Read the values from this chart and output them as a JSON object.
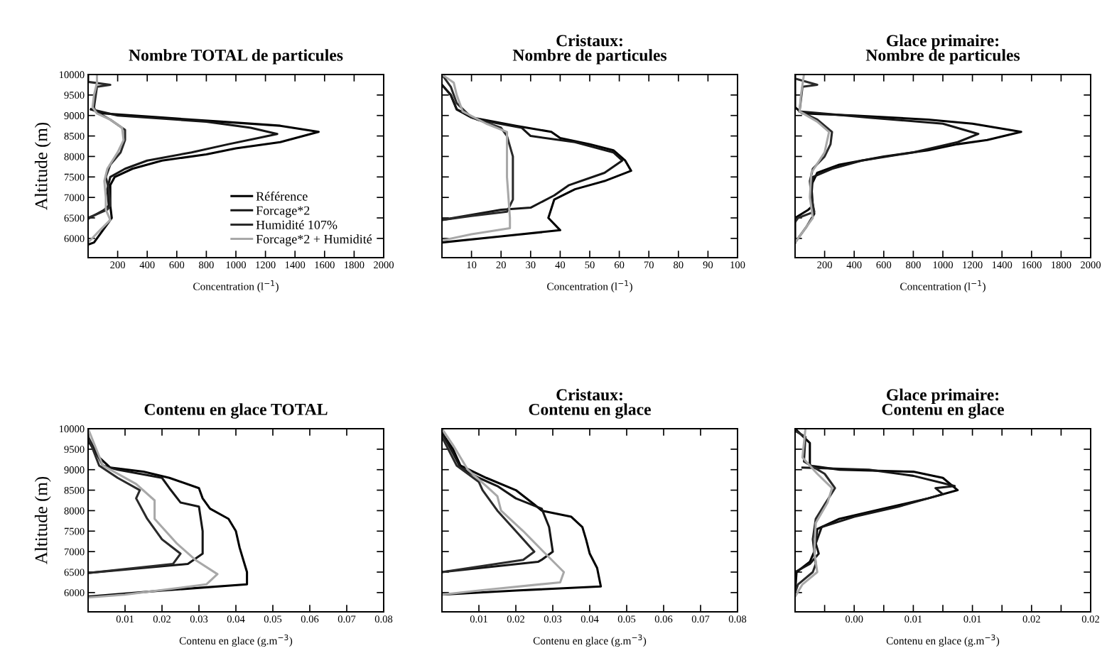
{
  "chart_data": [
    {
      "type": "line",
      "title": "Nombre TOTAL de particules",
      "xlabel": "Concentration (l$^{−1}$)",
      "ylabel": "Altitude (m)",
      "legend": "lower right",
      "xlim": [
        0,
        2000
      ],
      "xticks": [
        200,
        400,
        600,
        800,
        1000,
        1200,
        1400,
        1600,
        1800,
        2000
      ],
      "ylim": [
        5530,
        10000
      ],
      "yticks": [
        6000,
        6500,
        7000,
        7500,
        8000,
        8500,
        9000,
        9500,
        10000
      ],
      "series": [
        {
          "name": "Référence",
          "color": "#000000",
          "x": [
            20,
            100,
            500,
            900,
            1300,
            1560,
            1300,
            1000,
            800,
            500,
            300,
            180,
            150,
            150,
            160,
            100,
            40,
            0
          ],
          "values": [
            9150,
            9050,
            8950,
            8850,
            8750,
            8600,
            8350,
            8200,
            8050,
            7900,
            7700,
            7500,
            7300,
            6800,
            6500,
            6200,
            5900,
            5850
          ]
        },
        {
          "name": "Forcage*2",
          "color": "#161616",
          "x": [
            20,
            200,
            800,
            1100,
            1280,
            1150,
            950,
            700,
            400,
            250,
            150,
            130,
            140,
            110,
            0
          ],
          "values": [
            9150,
            9000,
            8850,
            8700,
            8550,
            8450,
            8300,
            8100,
            7900,
            7700,
            7500,
            7200,
            6800,
            6700,
            6480
          ]
        },
        {
          "name": "Humidité 107%",
          "color": "#2a2a2a",
          "x": [
            0,
            0,
            150,
            60,
            40,
            50,
            150,
            250,
            250,
            220,
            150,
            120,
            140,
            150,
            130,
            0
          ],
          "values": [
            10000,
            9820,
            9750,
            9700,
            9200,
            9100,
            8900,
            8650,
            8400,
            8100,
            7800,
            7500,
            7200,
            6800,
            6700,
            6500
          ]
        },
        {
          "name": "Forcage*2 + Humidité",
          "color": "#a8a8a8",
          "x": [
            60,
            60,
            40,
            30,
            60,
            150,
            230,
            240,
            200,
            130,
            110,
            120,
            120,
            150,
            80,
            0
          ],
          "values": [
            10000,
            9800,
            9500,
            9200,
            9050,
            8900,
            8700,
            8400,
            8100,
            7700,
            7400,
            7000,
            6700,
            6450,
            6200,
            5900
          ]
        }
      ]
    },
    {
      "type": "line",
      "title": "Cristaux:\nNombre de particules",
      "xlabel": "Concentration (l$^{−1}$)",
      "tick_labels": "x",
      "xlim": [
        0,
        100
      ],
      "xticks": [
        10,
        20,
        30,
        40,
        50,
        60,
        70,
        80,
        90,
        100
      ],
      "ylim": [
        5530,
        10000
      ],
      "yticks": [
        6000,
        6500,
        7000,
        7500,
        8000,
        8500,
        9000,
        9500,
        10000
      ],
      "series": [
        {
          "color": "#000000",
          "x": [
            0,
            3,
            5,
            10,
            25,
            37,
            40,
            50,
            58,
            62,
            64,
            55,
            45,
            38,
            36,
            40,
            20,
            0
          ],
          "values": [
            9750,
            9500,
            9150,
            8950,
            8750,
            8600,
            8450,
            8300,
            8150,
            7900,
            7650,
            7400,
            7200,
            6950,
            6500,
            6200,
            6050,
            5900
          ]
        },
        {
          "color": "#161616",
          "x": [
            0,
            3,
            5,
            12,
            27,
            30,
            45,
            58,
            61,
            55,
            43,
            38,
            30,
            20,
            0
          ],
          "values": [
            9750,
            9500,
            9150,
            8900,
            8700,
            8500,
            8350,
            8100,
            7900,
            7600,
            7300,
            7050,
            6750,
            6700,
            6450
          ]
        },
        {
          "color": "#2a2a2a",
          "x": [
            0,
            3,
            5,
            10,
            20,
            22,
            24,
            24,
            24,
            22,
            10,
            0
          ],
          "values": [
            10000,
            9700,
            9300,
            8950,
            8700,
            8500,
            8000,
            7500,
            6950,
            6650,
            6550,
            6450
          ]
        },
        {
          "color": "#a8a8a8",
          "x": [
            0,
            4,
            5,
            7,
            15,
            22,
            22,
            22,
            23,
            23,
            10,
            0
          ],
          "values": [
            10000,
            9800,
            9500,
            9100,
            8800,
            8600,
            8300,
            7500,
            6500,
            6250,
            6100,
            5950
          ]
        }
      ]
    },
    {
      "type": "line",
      "title": "Glace primaire:\nNombre de particules",
      "xlabel": "Concentration (l$^{−1}$)",
      "tick_labels": "x",
      "xlim": [
        0,
        2000
      ],
      "xticks": [
        200,
        400,
        600,
        800,
        1000,
        1200,
        1400,
        1600,
        1800,
        2000
      ],
      "ylim": [
        5530,
        10000
      ],
      "yticks": [
        6000,
        6500,
        7000,
        7500,
        8000,
        8500,
        9000,
        9500,
        10000
      ],
      "series": [
        {
          "color": "#000000",
          "x": [
            0,
            0,
            50,
            400,
            900,
            1200,
            1530,
            1300,
            1100,
            900,
            600,
            300,
            150,
            110,
            120,
            90,
            0,
            0
          ],
          "values": [
            10000,
            9200,
            9050,
            9000,
            8900,
            8800,
            8600,
            8400,
            8300,
            8150,
            8000,
            7800,
            7600,
            7300,
            6800,
            6700,
            6500,
            5900
          ]
        },
        {
          "color": "#161616",
          "x": [
            30,
            500,
            1000,
            1240,
            1100,
            800,
            450,
            250,
            120,
            110,
            130,
            80,
            0
          ],
          "values": [
            9100,
            8950,
            8800,
            8550,
            8350,
            8100,
            7900,
            7700,
            7500,
            7000,
            6600,
            6300,
            5900
          ]
        },
        {
          "color": "#2a2a2a",
          "x": [
            0,
            150,
            50,
            30,
            150,
            250,
            240,
            200,
            120,
            100,
            110,
            130,
            20,
            0
          ],
          "values": [
            9900,
            9750,
            9700,
            9100,
            8900,
            8600,
            8300,
            8000,
            7700,
            7400,
            7000,
            6650,
            6500,
            6400
          ]
        },
        {
          "color": "#a8a8a8",
          "x": [
            60,
            40,
            30,
            150,
            230,
            200,
            110,
            100,
            120,
            60,
            0
          ],
          "values": [
            10000,
            9500,
            9100,
            8850,
            8600,
            8100,
            7600,
            7000,
            6500,
            6200,
            5900
          ]
        }
      ]
    },
    {
      "type": "line",
      "title": "Contenu en glace TOTAL",
      "xlabel": "Contenu en glace (g.m$^{−3}$)",
      "ylabel": "Altitude (m)",
      "xlim": [
        0,
        0.08
      ],
      "xticks": [
        0.01,
        0.02,
        0.03,
        0.04,
        0.05,
        0.06,
        0.07,
        0.08
      ],
      "ylim": [
        5530,
        10000
      ],
      "yticks": [
        6000,
        6500,
        7000,
        7500,
        8000,
        8500,
        9000,
        9500,
        10000
      ],
      "series": [
        {
          "color": "#000000",
          "x": [
            0,
            0,
            0.003,
            0.006,
            0.015,
            0.022,
            0.03,
            0.031,
            0.033,
            0.038,
            0.04,
            0.041,
            0.042,
            0.043,
            0.043,
            0.02,
            0
          ],
          "values": [
            10000,
            9700,
            9300,
            9050,
            8950,
            8800,
            8550,
            8300,
            8050,
            7800,
            7500,
            7100,
            6800,
            6500,
            6200,
            6050,
            5900
          ]
        },
        {
          "color": "#161616",
          "x": [
            0,
            0.004,
            0.008,
            0.02,
            0.022,
            0.025,
            0.03,
            0.031,
            0.031,
            0.027,
            0
          ],
          "values": [
            9800,
            9100,
            9000,
            8800,
            8550,
            8200,
            8100,
            7500,
            6950,
            6700,
            6480
          ]
        },
        {
          "color": "#2a2a2a",
          "x": [
            0,
            0.003,
            0.008,
            0.014,
            0.013,
            0.016,
            0.02,
            0.025,
            0.023,
            0
          ],
          "values": [
            9800,
            9100,
            8800,
            8500,
            8300,
            7800,
            7300,
            6950,
            6700,
            6480
          ]
        },
        {
          "color": "#a8a8a8",
          "x": [
            0,
            0.004,
            0.013,
            0.018,
            0.018,
            0.024,
            0.029,
            0.035,
            0.032,
            0.01,
            0
          ],
          "values": [
            10000,
            9100,
            8650,
            8250,
            7800,
            7200,
            6800,
            6450,
            6200,
            5950,
            5880
          ]
        }
      ]
    },
    {
      "type": "line",
      "title": "Cristaux:\nContenu en glace",
      "xlabel": "Contenu en glace (g.m$^{−3}$)",
      "tick_labels": "x",
      "xlim": [
        0,
        0.08
      ],
      "xticks": [
        0.01,
        0.02,
        0.03,
        0.04,
        0.05,
        0.06,
        0.07,
        0.08
      ],
      "ylim": [
        5530,
        10000
      ],
      "yticks": [
        6000,
        6500,
        7000,
        7500,
        8000,
        8500,
        9000,
        9500,
        10000
      ],
      "series": [
        {
          "color": "#000000",
          "x": [
            0,
            0.003,
            0.005,
            0.012,
            0.02,
            0.025,
            0.027,
            0.035,
            0.038,
            0.039,
            0.04,
            0.042,
            0.043,
            0.02,
            0
          ],
          "values": [
            9900,
            9500,
            9100,
            8800,
            8500,
            8150,
            8000,
            7850,
            7600,
            7300,
            6950,
            6600,
            6150,
            6050,
            5950
          ]
        },
        {
          "color": "#161616",
          "x": [
            0,
            0.003,
            0.005,
            0.01,
            0.015,
            0.02,
            0.027,
            0.029,
            0.03,
            0.027,
            0.026,
            0
          ],
          "values": [
            9900,
            9400,
            9050,
            8800,
            8600,
            8300,
            8050,
            7600,
            7000,
            6800,
            6750,
            6500
          ]
        },
        {
          "color": "#2a2a2a",
          "x": [
            0,
            0.004,
            0.01,
            0.011,
            0.015,
            0.02,
            0.025,
            0.022,
            0
          ],
          "values": [
            9800,
            9100,
            8700,
            8500,
            8000,
            7500,
            7000,
            6800,
            6500
          ]
        },
        {
          "color": "#a8a8a8",
          "x": [
            0,
            0.003,
            0.007,
            0.012,
            0.015,
            0.016,
            0.022,
            0.028,
            0.033,
            0.032,
            0.01,
            0
          ],
          "values": [
            10000,
            9600,
            9000,
            8600,
            8350,
            8000,
            7500,
            6950,
            6500,
            6250,
            6050,
            5950
          ]
        }
      ]
    },
    {
      "type": "line",
      "title": "Glace primaire:\nContenu en glace",
      "xlabel": "Contenu en glace (g.m$^{−3}$)",
      "tick_labels": "x",
      "xlim": [
        0,
        0.02
      ],
      "xticks": [
        {
          "value": 0.002,
          "label": null
        },
        {
          "value": 0.004,
          "label": "0.00"
        },
        {
          "value": 0.006,
          "label": null
        },
        {
          "value": 0.008,
          "label": "0.01"
        },
        {
          "value": 0.01,
          "label": null
        },
        {
          "value": 0.012,
          "label": "0.01"
        },
        {
          "value": 0.014,
          "label": null
        },
        {
          "value": 0.016,
          "label": "0.02"
        },
        {
          "value": 0.018,
          "label": null
        },
        {
          "value": 0.02,
          "label": "0.02"
        }
      ],
      "ylim": [
        5530,
        10000
      ],
      "yticks": [
        6000,
        6500,
        7000,
        7500,
        8000,
        8500,
        9000,
        9500,
        10000
      ],
      "series": [
        {
          "color": "#000000",
          "x": [
            0,
            0.001,
            0.001,
            0.003,
            0.008,
            0.01,
            0.011,
            0.009,
            0.006,
            0.003,
            0.0015,
            0.0013,
            0.001,
            0.0001,
            0
          ],
          "values": [
            10000,
            9650,
            9100,
            9000,
            8950,
            8800,
            8500,
            8300,
            8050,
            7800,
            7550,
            7000,
            6750,
            6500,
            6000
          ]
        },
        {
          "color": "#161616",
          "x": [
            0.0005,
            0.005,
            0.008,
            0.0108,
            0.0095,
            0.01,
            0.007,
            0.004,
            0.0018,
            0.0014,
            0.0016,
            0.001,
            0
          ],
          "values": [
            9050,
            9000,
            8850,
            8600,
            8550,
            8400,
            8100,
            7850,
            7600,
            7200,
            6950,
            6700,
            6500
          ]
        },
        {
          "color": "#2a2a2a",
          "x": [
            0,
            0.0007,
            0.0006,
            0.002,
            0.0027,
            0.002,
            0.0014,
            0.0012,
            0.0014,
            0.0012,
            0.0002,
            0
          ],
          "values": [
            9950,
            9800,
            9200,
            8900,
            8550,
            8150,
            7800,
            7300,
            6700,
            6500,
            6200,
            6000
          ]
        },
        {
          "color": "#a8a8a8",
          "x": [
            0.0007,
            0.0005,
            0.0015,
            0.0025,
            0.0022,
            0.0014,
            0.0013,
            0.0015,
            0.0005,
            0
          ],
          "values": [
            10000,
            9300,
            8900,
            8550,
            8200,
            7700,
            7000,
            6500,
            6200,
            5900
          ]
        }
      ]
    }
  ]
}
